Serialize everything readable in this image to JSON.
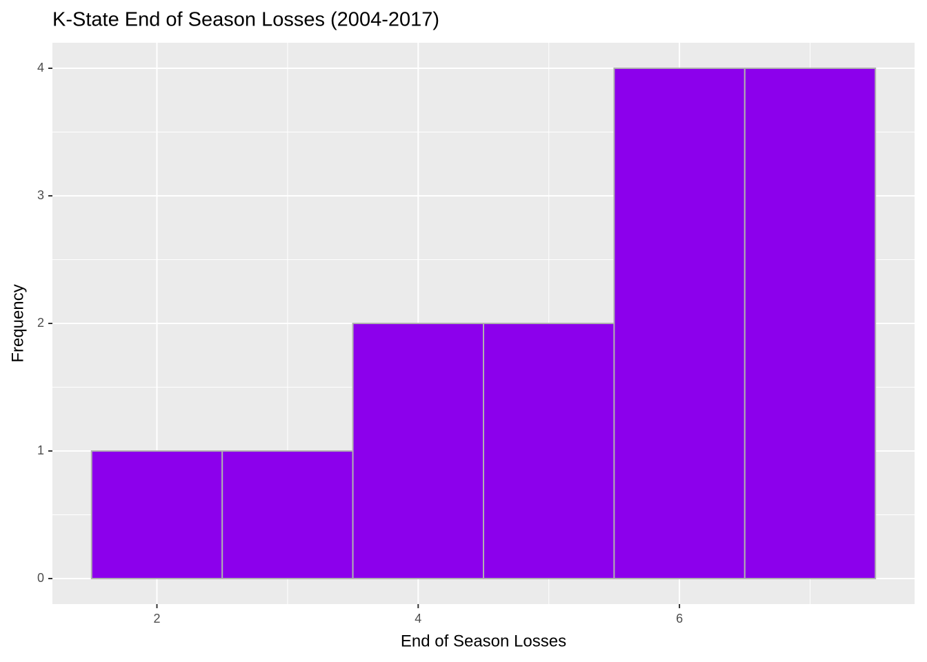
{
  "chart_data": {
    "type": "histogram",
    "title": "K-State End of Season Losses (2004-2017)",
    "x_label": "End of Season Losses",
    "y_label": "Frequency",
    "bins": [
      1.5,
      2.5,
      3.5,
      4.5,
      5.5,
      6.5,
      7.5
    ],
    "values": [
      1,
      1,
      2,
      2,
      4,
      4
    ],
    "color": "#8c00ec",
    "edgecolor": "#b0b0b0",
    "xlim": [
      1.2,
      7.8
    ],
    "xticks": [
      2,
      4,
      6
    ],
    "ylim": [
      -0.2,
      4.2
    ],
    "yticks": [
      0,
      1,
      2,
      3,
      4
    ],
    "grid": true
  }
}
